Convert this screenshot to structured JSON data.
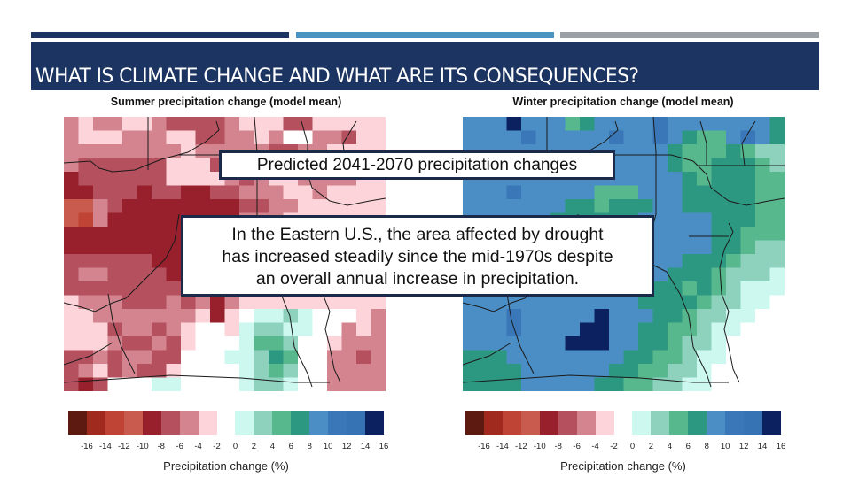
{
  "slide": {
    "title": "WHAT IS CLIMATE CHANGE AND WHAT ARE ITS CONSEQUENCES?",
    "accent_colors": {
      "dark_navy": "#1c3461",
      "steel_blue": "#4b93c1",
      "gray": "#9aa0a6"
    }
  },
  "callouts": {
    "top": "Predicted 2041-2070 precipitation changes",
    "main_lines": [
      "In the Eastern U.S., the area affected by drought",
      "has increased steadily since the mid-1970s despite",
      "an overall annual increase in precipitation."
    ]
  },
  "legend": {
    "label": "Precipitation change (%)",
    "ticks": [
      "-16",
      "-14",
      "-12",
      "-10",
      "-8",
      "-6",
      "-4",
      "-2",
      "0",
      "2",
      "4",
      "6",
      "8",
      "10",
      "12",
      "14",
      "16"
    ],
    "bins": [
      {
        "key": "a",
        "range": "< -16",
        "color": "#5c1a10"
      },
      {
        "key": "b",
        "range": "-16 to -14",
        "color": "#a02a1e"
      },
      {
        "key": "c",
        "range": "-14 to -12",
        "color": "#bf4436"
      },
      {
        "key": "d",
        "range": "-12 to -10",
        "color": "#c95a4e"
      },
      {
        "key": "e",
        "range": "-10 to -8",
        "color": "#98202c"
      },
      {
        "key": "f",
        "range": "-8 to -6",
        "color": "#b5505f"
      },
      {
        "key": "g",
        "range": "-6 to -4",
        "color": "#d4848e"
      },
      {
        "key": "h",
        "range": "-4 to -2",
        "color": "#fdd4da"
      },
      {
        "key": "i",
        "range": "-2 to 2",
        "color": "#ffffff"
      },
      {
        "key": "j",
        "range": "2 to 4",
        "color": "#ccf8f0"
      },
      {
        "key": "k",
        "range": "4 to 6",
        "color": "#8ed2bd"
      },
      {
        "key": "l",
        "range": "6 to 8",
        "color": "#57b88e"
      },
      {
        "key": "m",
        "range": "8 to 10",
        "color": "#2d9882"
      },
      {
        "key": "n",
        "range": "10 to 12",
        "color": "#4a8ec5"
      },
      {
        "key": "o",
        "range": "12 to 14",
        "color": "#3977b9"
      },
      {
        "key": "p",
        "range": "14 to 16",
        "color": "#3573b4"
      },
      {
        "key": "q",
        "range": "> 16",
        "color": "#0c2260"
      }
    ]
  },
  "chart_data": [
    {
      "type": "heatmap",
      "title": "Summer precipitation change (model mean)",
      "colorbar_label": "Precipitation change (%)",
      "colorbar_ticks": [
        -16,
        -14,
        -12,
        -10,
        -8,
        -6,
        -4,
        -2,
        0,
        2,
        4,
        6,
        8,
        10,
        12,
        14,
        16
      ],
      "grid_encoding": "each character = legend bin key; rows north to south, columns west to east",
      "grid": [
        "ghgghhgffffghhhffhhhhh",
        "ghhhggghhffgghgiiggfhh",
        "gggggggghgggggffgghhhh",
        "gffffffhhhfggghffggfhh",
        "effffffhhhhgfghhgggghh",
        "eefffeffeeffggghhghhhh",
        "ddgfeeeeeeeeffgghhhhhh",
        "dcgeeeeeeeeeggghhhhhhh",
        "eeeeeeeeeeeeehhhhhhhhh",
        "eeeeeeeeeeefeghhhhhhhh",
        "ffffffeeeeeeefhhhhhhhh",
        "fggffffeeeeeefhhhhhhhh",
        "fffffffffeeffghhhhhhhh",
        "hgggfffgfgeghhhhhhhhhh",
        "hhggggggghehijjkjiiihg",
        "hhhfggfghiihjkkjjiighg",
        "hhhgffgfhiiijllkiihggg",
        "ffgfggffiiijjkmliiggfg",
        "fghfgffhiiiijklkiigggg",
        "fefiiijjiiiijkkjiigggg"
      ]
    },
    {
      "type": "heatmap",
      "title": "Winter precipitation change (model mean)",
      "colorbar_label": "Precipitation change (%)",
      "colorbar_ticks": [
        -16,
        -14,
        -12,
        -10,
        -8,
        -6,
        -4,
        -2,
        0,
        2,
        4,
        6,
        8,
        10,
        12,
        14,
        16
      ],
      "grid_encoding": "each character = legend bin key; rows north to south, columns west to east",
      "grid": [
        "nnnqnnnlmnnnnonnnnnnnm",
        "nnnnonnnnnonnonmllnonm",
        "nnnnnnnnnnnnnnmlllmlkk",
        "nnnnnnnnnnnnnnmllmmmlk",
        "nnnnnnnnnnnnnnnmlmmmll",
        "nnnonnnnnlllnnnmmmmmll",
        "nnnnnnnmmlmmmnnmmmmmll",
        "nnnnnnmmmmmmnnnnnmmmll",
        "nnnnnnnnnnnnnnnnnmmlll",
        "nnnnnnnnnnnnnnnnnmmlkk",
        "nnnnnnnnnnnnnnnmmmlkkk",
        "nnnnnnnnnnnnnnmmmlkkkj",
        "nnnnnnnnnnnnnmmlmlkjjj",
        "nnnnnnnnnnnnmmmmlkkjji",
        "nnnonnnnnqnnnmmlkkjjii",
        "nnnonnnnqqnnmmllkjjiii",
        "nnnnnnnqqqnnmmlkkjiiii",
        "mmmnnnnnnnnmmllkjjiiii",
        "mmmmnnnnnnmmllkkjiiiii",
        "mmmmnnnnnmmllkkjjiiiii"
      ]
    }
  ]
}
